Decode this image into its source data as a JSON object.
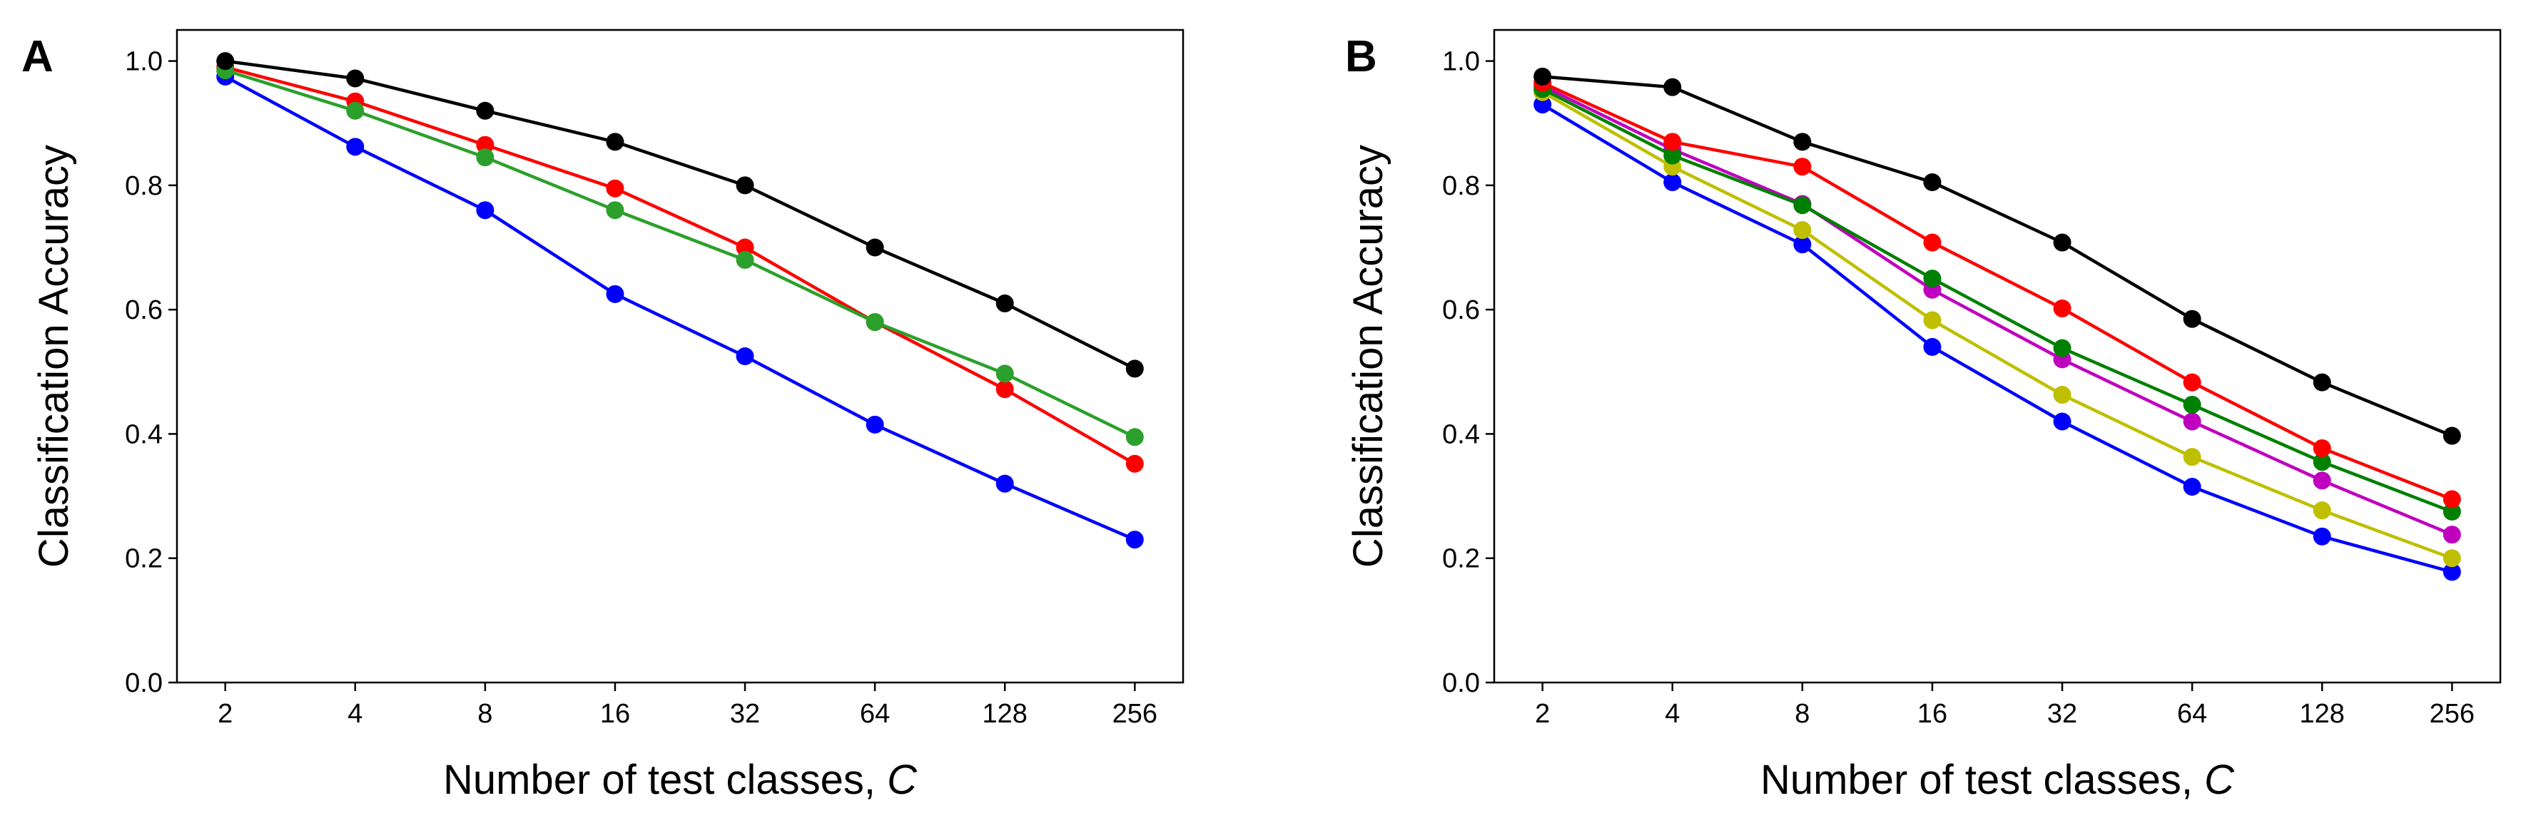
{
  "figure": {
    "panel_letters": [
      "A",
      "B"
    ]
  },
  "chart_data": [
    {
      "type": "line",
      "panel": "A",
      "title": "",
      "xlabel_main": "Number of test classes, ",
      "xlabel_var": "C",
      "ylabel": "Classification Accuracy",
      "x_scale": "log2",
      "categories": [
        "2",
        "4",
        "8",
        "16",
        "32",
        "64",
        "128",
        "256"
      ],
      "x": [
        2,
        4,
        8,
        16,
        32,
        64,
        128,
        256
      ],
      "ylim": [
        0,
        1.05
      ],
      "yticks": [
        0.0,
        0.2,
        0.4,
        0.6,
        0.8,
        1.0
      ],
      "ytick_labels": [
        "0.0",
        "0.2",
        "0.4",
        "0.6",
        "0.8",
        "1.0"
      ],
      "grid": false,
      "series": [
        {
          "name": "blue",
          "color": "#0000ff",
          "values": [
            0.975,
            0.862,
            0.76,
            0.625,
            0.525,
            0.415,
            0.32,
            0.23
          ]
        },
        {
          "name": "red",
          "color": "#ff0000",
          "values": [
            0.99,
            0.935,
            0.865,
            0.795,
            0.7,
            0.58,
            0.472,
            0.352
          ]
        },
        {
          "name": "green",
          "color": "#2ca02c",
          "values": [
            0.985,
            0.92,
            0.845,
            0.76,
            0.68,
            0.58,
            0.497,
            0.395
          ]
        },
        {
          "name": "black",
          "color": "#000000",
          "values": [
            1.0,
            0.972,
            0.92,
            0.87,
            0.8,
            0.7,
            0.61,
            0.505
          ]
        }
      ]
    },
    {
      "type": "line",
      "panel": "B",
      "title": "",
      "xlabel_main": "Number of test classes, ",
      "xlabel_var": "C",
      "ylabel": "Classification Accuracy",
      "x_scale": "log2",
      "categories": [
        "2",
        "4",
        "8",
        "16",
        "32",
        "64",
        "128",
        "256"
      ],
      "x": [
        2,
        4,
        8,
        16,
        32,
        64,
        128,
        256
      ],
      "ylim": [
        0,
        1.05
      ],
      "yticks": [
        0.0,
        0.2,
        0.4,
        0.6,
        0.8,
        1.0
      ],
      "ytick_labels": [
        "0.0",
        "0.2",
        "0.4",
        "0.6",
        "0.8",
        "1.0"
      ],
      "grid": false,
      "series": [
        {
          "name": "blue",
          "color": "#0000ff",
          "values": [
            0.93,
            0.805,
            0.705,
            0.54,
            0.42,
            0.315,
            0.235,
            0.178
          ]
        },
        {
          "name": "yellow",
          "color": "#bfbf00",
          "values": [
            0.95,
            0.83,
            0.728,
            0.583,
            0.463,
            0.363,
            0.277,
            0.2
          ]
        },
        {
          "name": "magenta",
          "color": "#bf00bf",
          "values": [
            0.96,
            0.858,
            0.77,
            0.632,
            0.52,
            0.42,
            0.325,
            0.238
          ]
        },
        {
          "name": "green",
          "color": "#008000",
          "values": [
            0.955,
            0.848,
            0.768,
            0.65,
            0.538,
            0.447,
            0.355,
            0.275
          ]
        },
        {
          "name": "red",
          "color": "#ff0000",
          "values": [
            0.965,
            0.87,
            0.83,
            0.708,
            0.602,
            0.483,
            0.377,
            0.295
          ]
        },
        {
          "name": "black",
          "color": "#000000",
          "values": [
            0.975,
            0.958,
            0.87,
            0.805,
            0.708,
            0.585,
            0.483,
            0.397
          ]
        }
      ]
    }
  ]
}
